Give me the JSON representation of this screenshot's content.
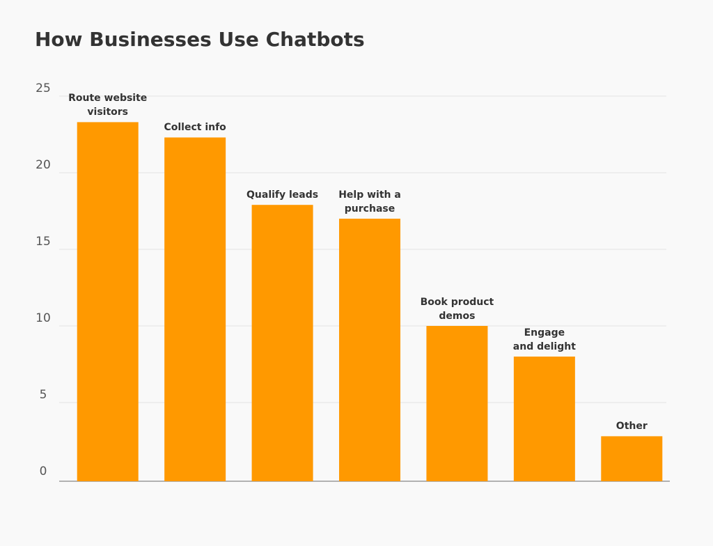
{
  "chart_data": {
    "type": "bar",
    "title": "How Businesses Use Chatbots",
    "categories": [
      "Route website\nvisitors",
      "Collect info",
      "Qualify leads",
      "Help with a\npurchase",
      "Book product\ndemos",
      "Engage\nand delight",
      "Other"
    ],
    "values": [
      23.3,
      22.3,
      17.9,
      17,
      10,
      8,
      2.8
    ],
    "color": "#ff9900",
    "ylim": [
      0,
      25
    ],
    "yticks": [
      0,
      5,
      10,
      15,
      20,
      25
    ],
    "grid": true
  }
}
